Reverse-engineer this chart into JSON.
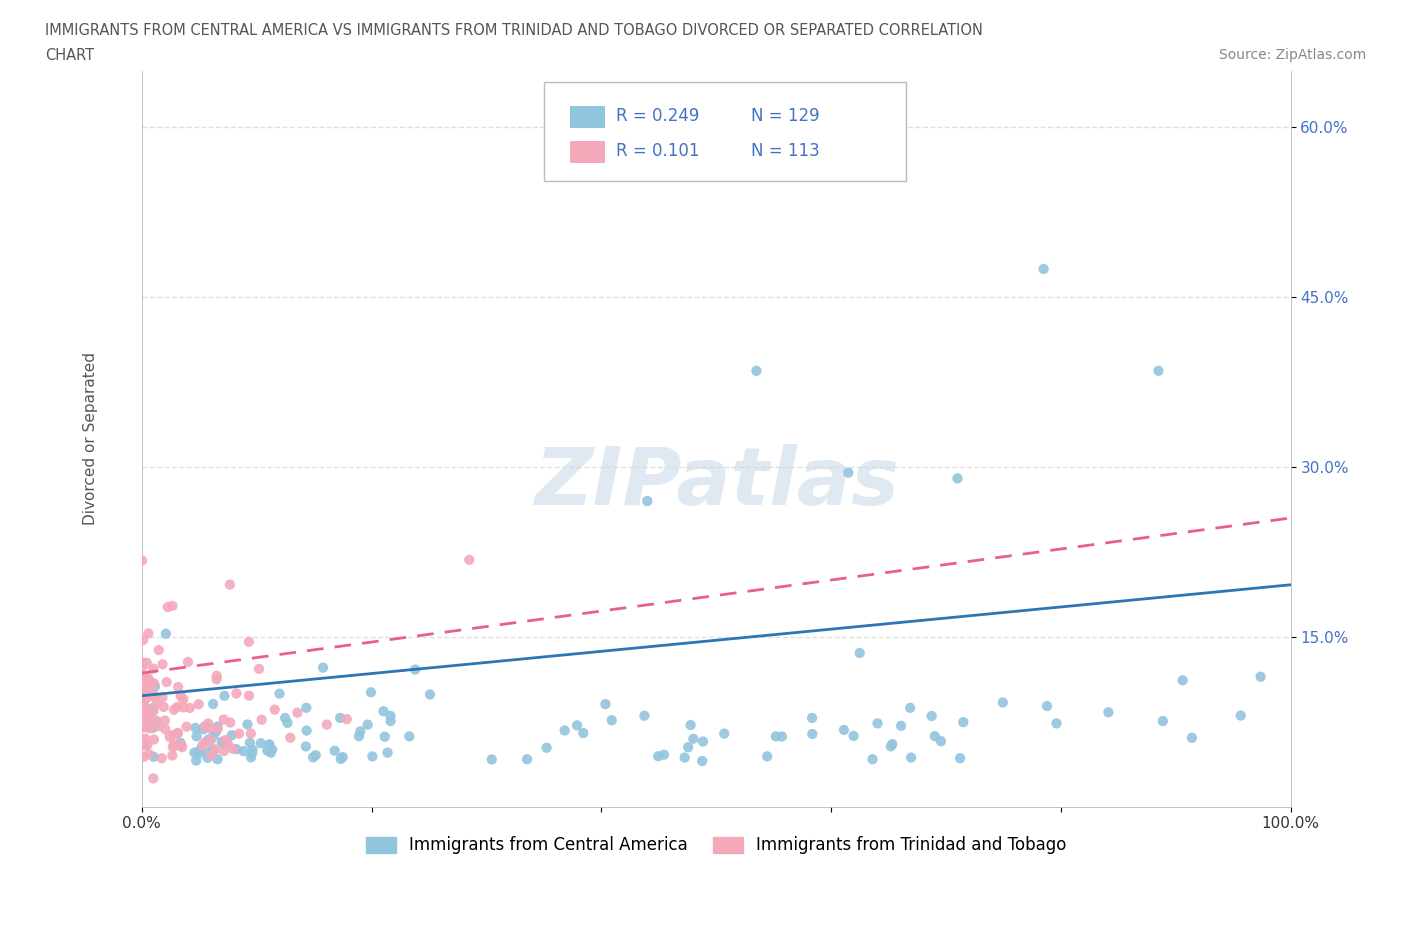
{
  "title_line1": "IMMIGRANTS FROM CENTRAL AMERICA VS IMMIGRANTS FROM TRINIDAD AND TOBAGO DIVORCED OR SEPARATED CORRELATION",
  "title_line2": "CHART",
  "source": "Source: ZipAtlas.com",
  "ylabel": "Divorced or Separated",
  "legend_label1": "Immigrants from Central America",
  "legend_label2": "Immigrants from Trinidad and Tobago",
  "R1": "0.249",
  "N1": "129",
  "R2": "0.101",
  "N2": "113",
  "color1": "#92C5DE",
  "color2": "#F4A9BB",
  "trendline1_color": "#2E75B6",
  "trendline2_color": "#E8608A",
  "x_min": 0.0,
  "x_max": 1.0,
  "y_min": 0.0,
  "y_max": 0.65,
  "trendline1_x0": 0.0,
  "trendline1_y0": 0.098,
  "trendline1_x1": 1.0,
  "trendline1_y1": 0.196,
  "trendline2_x0": 0.0,
  "trendline2_y0": 0.118,
  "trendline2_x1": 1.0,
  "trendline2_y1": 0.255,
  "watermark": "ZIPatlas",
  "background_color": "#ffffff",
  "grid_color": "#e0e0e0",
  "legend_R_color": "#4472C4",
  "text_color": "#555555"
}
